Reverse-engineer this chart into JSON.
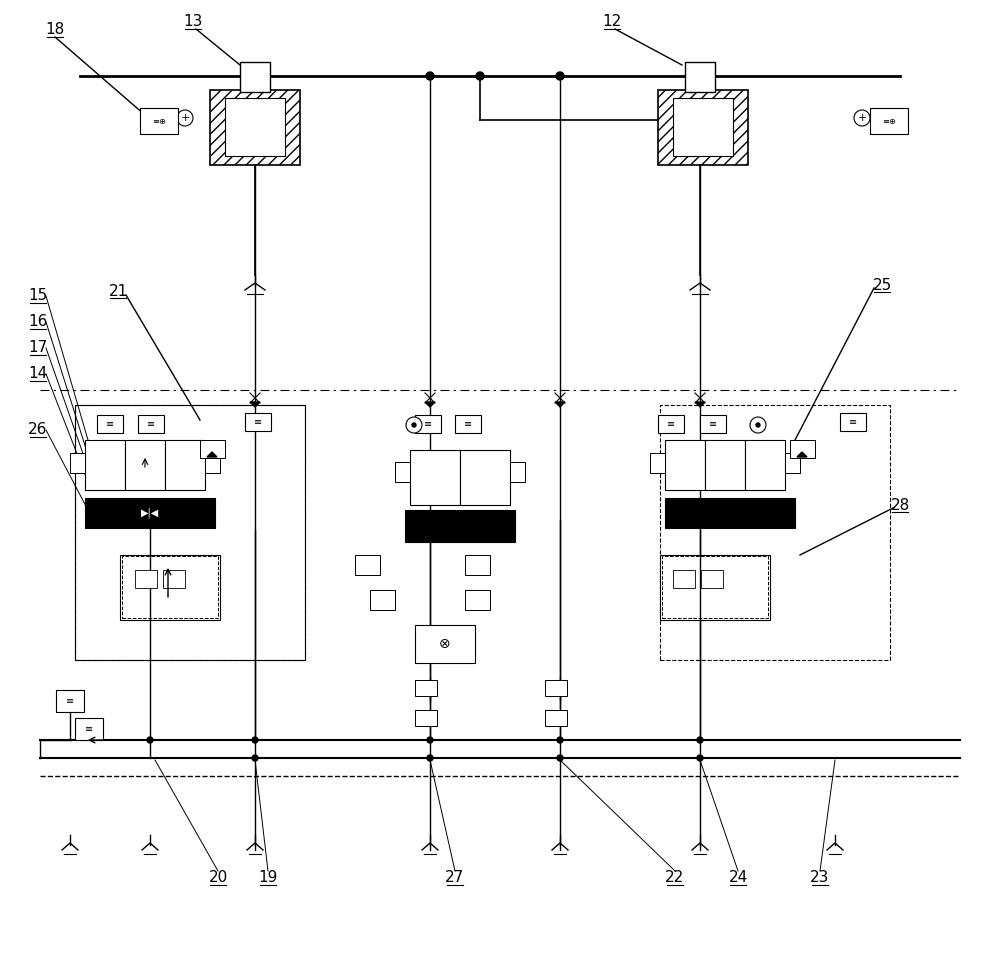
{
  "bg_color": "#ffffff",
  "line_color": "#000000",
  "fig_width": 10.0,
  "fig_height": 9.59
}
